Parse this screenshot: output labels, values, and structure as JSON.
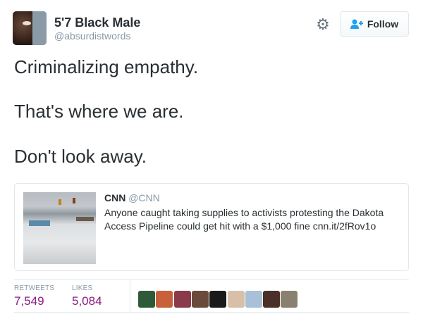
{
  "author": {
    "name": "5'7 Black Male",
    "handle": "@absurdistwords",
    "avatar": "avatar-photo"
  },
  "actions": {
    "settings_icon": "gear-icon",
    "follow_label": "Follow",
    "follow_icon": "add-user-icon",
    "follow_color": "#1da1f2"
  },
  "tweet": {
    "lines": [
      "Criminalizing empathy.",
      "That's where we are.",
      "Don't look away."
    ]
  },
  "quote": {
    "name": "CNN",
    "handle": "@CNN",
    "text": "Anyone caught taking supplies to activists protesting the Dakota Access Pipeline could get hit with a $1,000 fine cnn.it/2fRov1o",
    "image": "snowy-protest-camp-photo"
  },
  "stats": {
    "retweets_label": "RETWEETS",
    "retweets": "7,549",
    "likes_label": "LIKES",
    "likes": "5,084",
    "count_color": "#8a1a80",
    "likers": [
      "#2e5a3a",
      "#c8603a",
      "#8a3a48",
      "#6a4a3a",
      "#1a1a1a",
      "#d8c0a8",
      "#a8c0d8",
      "#4a3028",
      "#8a8070"
    ]
  }
}
